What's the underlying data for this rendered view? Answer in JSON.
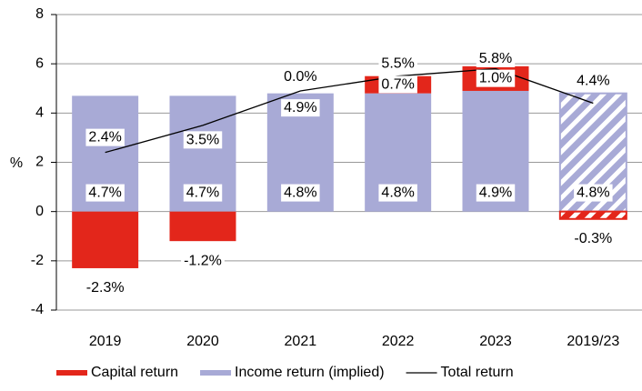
{
  "chart_data": {
    "type": "bar",
    "stacked": true,
    "y_label": "%",
    "categories": [
      "2019",
      "2020",
      "2021",
      "2022",
      "2023",
      "2019/23"
    ],
    "hatched": [
      false,
      false,
      false,
      false,
      false,
      true
    ],
    "series": [
      {
        "name": "Capital return",
        "type": "bar",
        "color": "#e3261b",
        "values": [
          -2.3,
          -1.2,
          0.0,
          0.7,
          1.0,
          -0.3
        ],
        "value_labels": [
          "-2.3%",
          "-1.2%",
          "0.0%",
          "0.7%",
          "1.0%",
          "-0.3%"
        ]
      },
      {
        "name": "Income return (implied)",
        "type": "bar",
        "color": "#a8aad6",
        "values": [
          4.7,
          4.7,
          4.8,
          4.8,
          4.9,
          4.8
        ],
        "value_labels": [
          "4.7%",
          "4.7%",
          "4.8%",
          "4.8%",
          "4.9%",
          "4.8%"
        ]
      },
      {
        "name": "Total return",
        "type": "line",
        "color": "#000000",
        "values": [
          2.4,
          3.5,
          4.9,
          5.5,
          5.8,
          4.4
        ],
        "value_labels": [
          "2.4%",
          "3.5%",
          "4.9%",
          "5.5%",
          "5.8%",
          "4.4%"
        ]
      }
    ],
    "ylim": [
      -4,
      8
    ],
    "yticks": [
      -4,
      -2,
      0,
      2,
      4,
      6,
      8
    ],
    "grid": true,
    "legend": "bottom"
  }
}
